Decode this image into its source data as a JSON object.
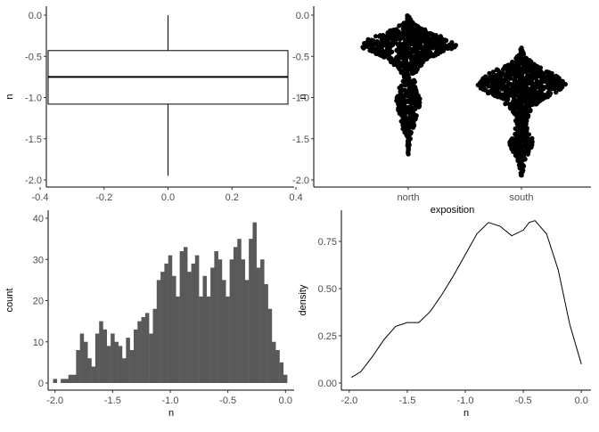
{
  "chart_data": [
    {
      "type": "box",
      "xlabel": "",
      "ylabel": "n",
      "xlim": [
        -0.4,
        0.4
      ],
      "ylim": [
        -2.0,
        0.0
      ],
      "xticks": [
        "-0.4",
        "-0.2",
        "0.0",
        "0.2",
        "0.4"
      ],
      "yticks": [
        "-2.0",
        "-1.5",
        "-1.0",
        "-0.5",
        "0.0"
      ],
      "stats": {
        "min": -1.95,
        "q1": -1.08,
        "median": -0.75,
        "q3": -0.43,
        "max": 0.0,
        "box_half_width": 0.375
      }
    },
    {
      "type": "scatter",
      "subtype": "beeswarm",
      "xlabel": "exposition",
      "ylabel": "n",
      "ylim": [
        -2.0,
        0.0
      ],
      "categories": [
        "north",
        "south"
      ],
      "yticks": [
        "-2.0",
        "-1.5",
        "-1.0",
        "-0.5",
        "0.0"
      ],
      "point_color": "#000000",
      "swarm_profiles": [
        {
          "name": "north",
          "min": -1.7,
          "max": 0.0,
          "width_by_y": [
            [
              0.0,
              0.02
            ],
            [
              -0.1,
              0.12
            ],
            [
              -0.2,
              0.4
            ],
            [
              -0.3,
              0.82
            ],
            [
              -0.38,
              1.0
            ],
            [
              -0.45,
              0.72
            ],
            [
              -0.55,
              0.38
            ],
            [
              -0.65,
              0.2
            ],
            [
              -0.75,
              0.1
            ],
            [
              -0.85,
              0.16
            ],
            [
              -0.95,
              0.22
            ],
            [
              -1.05,
              0.25
            ],
            [
              -1.15,
              0.22
            ],
            [
              -1.25,
              0.16
            ],
            [
              -1.35,
              0.12
            ],
            [
              -1.45,
              0.08
            ],
            [
              -1.55,
              0.03
            ],
            [
              -1.7,
              0.0
            ]
          ]
        },
        {
          "name": "south",
          "min": -1.95,
          "max": -0.4,
          "width_by_y": [
            [
              -0.4,
              0.02
            ],
            [
              -0.5,
              0.1
            ],
            [
              -0.6,
              0.3
            ],
            [
              -0.7,
              0.7
            ],
            [
              -0.78,
              0.92
            ],
            [
              -0.85,
              1.0
            ],
            [
              -0.95,
              0.75
            ],
            [
              -1.05,
              0.42
            ],
            [
              -1.15,
              0.22
            ],
            [
              -1.25,
              0.14
            ],
            [
              -1.35,
              0.12
            ],
            [
              -1.45,
              0.2
            ],
            [
              -1.55,
              0.3
            ],
            [
              -1.65,
              0.2
            ],
            [
              -1.75,
              0.1
            ],
            [
              -1.85,
              0.05
            ],
            [
              -1.95,
              0.01
            ]
          ]
        }
      ]
    },
    {
      "type": "bar",
      "subtype": "histogram",
      "xlabel": "n",
      "ylabel": "count",
      "xlim": [
        -2.075,
        0.075
      ],
      "ylim": [
        0,
        41
      ],
      "xticks": [
        "-2.0",
        "-1.5",
        "-1.0",
        "-0.5",
        "0.0"
      ],
      "yticks": [
        "0",
        "10",
        "20",
        "30",
        "40"
      ],
      "bin_start": -2.0,
      "bin_width": 0.0333,
      "fill": "#595959",
      "values": [
        1,
        0,
        1,
        1,
        2,
        2,
        8,
        12,
        10,
        6,
        4,
        12,
        15,
        13,
        9,
        12,
        10,
        9,
        6,
        11,
        8,
        13,
        15,
        16,
        17,
        12,
        18,
        25,
        27,
        29,
        31,
        26,
        21,
        32,
        33,
        27,
        29,
        31,
        21,
        26,
        21,
        28,
        32,
        30,
        25,
        21,
        30,
        33,
        35,
        30,
        25,
        35,
        39,
        28,
        30,
        24,
        18,
        10,
        8,
        5,
        2
      ]
    },
    {
      "type": "line",
      "subtype": "density",
      "xlabel": "n",
      "ylabel": "density",
      "xlim": [
        -2.075,
        0.075
      ],
      "ylim": [
        0,
        0.87
      ],
      "xticks": [
        "-2.0",
        "-1.5",
        "-1.0",
        "-0.5",
        "0.0"
      ],
      "yticks": [
        "0.00",
        "0.25",
        "0.50",
        "0.75"
      ],
      "x": [
        -1.98,
        -1.9,
        -1.8,
        -1.7,
        -1.6,
        -1.5,
        -1.45,
        -1.4,
        -1.3,
        -1.2,
        -1.1,
        -1.0,
        -0.9,
        -0.8,
        -0.7,
        -0.6,
        -0.5,
        -0.45,
        -0.4,
        -0.3,
        -0.2,
        -0.1,
        0.0
      ],
      "y": [
        0.03,
        0.06,
        0.14,
        0.23,
        0.3,
        0.32,
        0.32,
        0.32,
        0.38,
        0.47,
        0.57,
        0.68,
        0.79,
        0.85,
        0.83,
        0.78,
        0.81,
        0.85,
        0.86,
        0.79,
        0.6,
        0.31,
        0.1
      ]
    }
  ]
}
